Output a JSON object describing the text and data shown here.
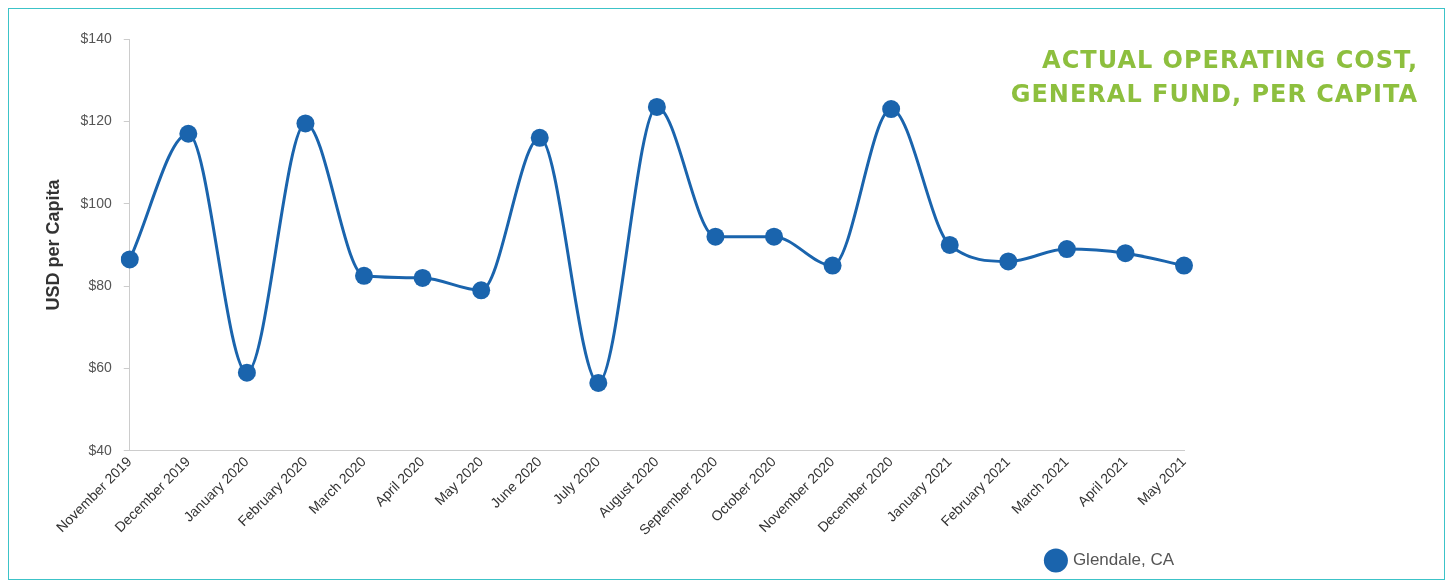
{
  "chart_data": {
    "type": "line",
    "title": "ACTUAL OPERATING COST, GENERAL FUND, PER CAPITA",
    "ylabel": "USD per Capita",
    "categories": [
      "November 2019",
      "December 2019",
      "January 2020",
      "February 2020",
      "March 2020",
      "April 2020",
      "May 2020",
      "June 2020",
      "July 2020",
      "August 2020",
      "September 2020",
      "October 2020",
      "November 2020",
      "December 2020",
      "January 2021",
      "February 2021",
      "March 2021",
      "April 2021",
      "May 2021"
    ],
    "series": [
      {
        "name": "Glendale, CA",
        "color": "#1a64ad",
        "values": [
          86.5,
          117,
          59,
          119.5,
          82.5,
          82,
          79,
          116,
          56.5,
          123.5,
          92,
          92,
          85,
          123,
          90,
          86,
          89,
          88,
          85
        ]
      }
    ],
    "ylim": [
      40,
      140
    ],
    "yticks": [
      {
        "value": 40,
        "label": "$40"
      },
      {
        "value": 60,
        "label": "$60"
      },
      {
        "value": 80,
        "label": "$80"
      },
      {
        "value": 100,
        "label": "$100"
      },
      {
        "value": 120,
        "label": "$120"
      },
      {
        "value": 140,
        "label": "$140"
      }
    ],
    "grid": false,
    "legend": "bottom right",
    "marker": "circle",
    "line_style": "solid"
  }
}
